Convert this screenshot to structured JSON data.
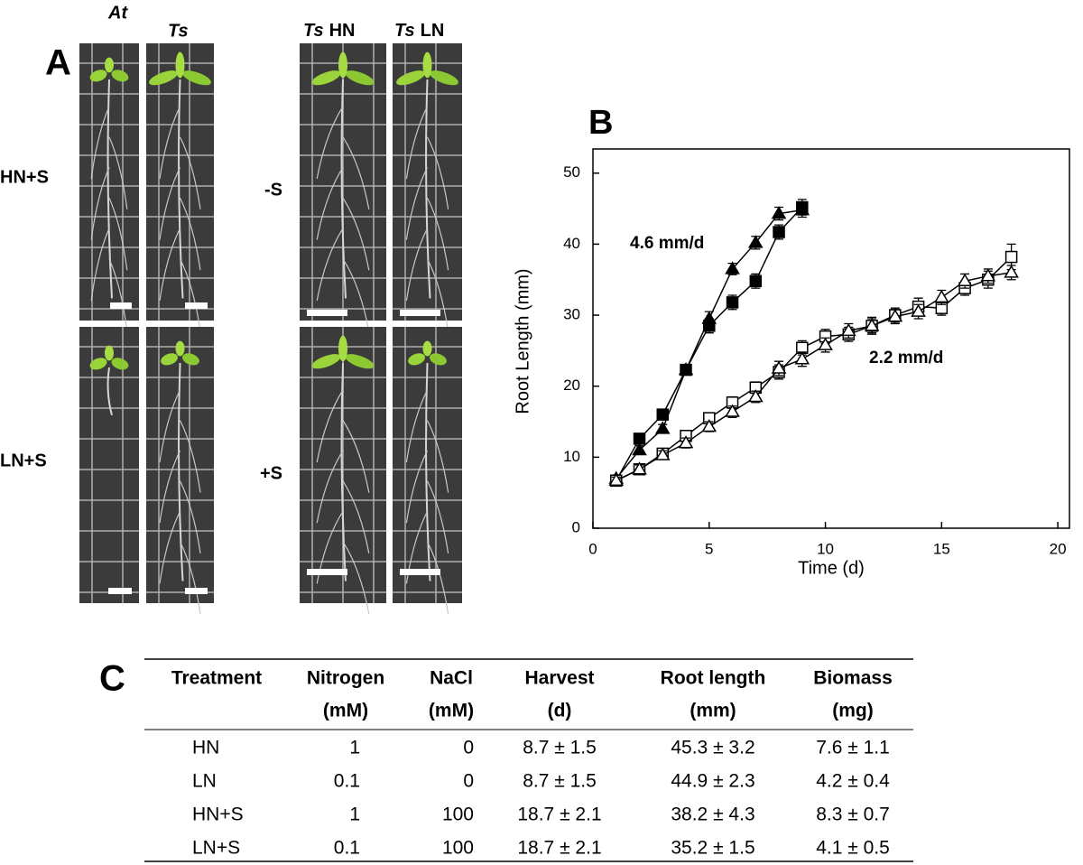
{
  "panel_a": {
    "label": "A",
    "column_headers": [
      {
        "species": "At"
      },
      {
        "species": "Ts"
      },
      {
        "species": "Ts",
        "condition": "HN"
      },
      {
        "species": "Ts",
        "condition": "LN"
      }
    ],
    "row_labels_left": [
      "HN+S",
      "LN+S"
    ],
    "row_labels_right": [
      "-S",
      "+S"
    ]
  },
  "chart_data": {
    "type": "line",
    "panel_label": "B",
    "x_label": "Time (d)",
    "y_label": "Root Length (mm)",
    "xlim": [
      0,
      20.5
    ],
    "ylim": [
      0,
      53.4
    ],
    "xticks": [
      0,
      5,
      10,
      15,
      20
    ],
    "yticks": [
      0,
      10,
      20,
      30,
      40,
      50
    ],
    "annotations": [
      "4.6 mm/d",
      "2.2 mm/d"
    ],
    "series": [
      {
        "color": "#000000",
        "marker": "square",
        "filled": true,
        "x": [
          1,
          2,
          3,
          4,
          5,
          6,
          7,
          8,
          9
        ],
        "values": [
          6.7,
          12.6,
          16,
          22.3,
          28.5,
          31.8,
          34.8,
          41.7,
          45.2
        ],
        "errors": [
          0.5,
          0.6,
          0.6,
          0.6,
          1,
          1,
          1,
          1,
          1.1
        ]
      },
      {
        "color": "#000000",
        "marker": "triangle",
        "filled": true,
        "x": [
          1,
          2,
          3,
          4,
          5,
          6,
          7,
          8,
          9
        ],
        "values": [
          7,
          11,
          14,
          22.3,
          29.5,
          36.5,
          40.2,
          44.3,
          44.8
        ],
        "errors": [
          0.5,
          0.6,
          0.6,
          0.6,
          1,
          0.8,
          0.9,
          0.9,
          1
        ]
      },
      {
        "color": "#000000",
        "marker": "square",
        "filled": false,
        "x": [
          1,
          2,
          3,
          4,
          5,
          6,
          7,
          8,
          9,
          10,
          11,
          12,
          13,
          14,
          15,
          16,
          17,
          18
        ],
        "values": [
          6.7,
          8.3,
          10.5,
          13,
          15.5,
          17.7,
          19.8,
          22,
          25.4,
          27,
          27.3,
          28.5,
          30,
          31.2,
          31,
          33.8,
          35,
          38.2
        ],
        "errors": [
          0.5,
          0.6,
          0.6,
          0.7,
          0.7,
          0.8,
          0.8,
          1,
          1,
          1,
          1,
          1.2,
          1,
          1.2,
          1,
          1,
          1.2,
          1.8
        ]
      },
      {
        "color": "#000000",
        "marker": "triangle",
        "filled": false,
        "x": [
          1,
          2,
          3,
          4,
          5,
          6,
          7,
          8,
          9,
          10,
          11,
          12,
          13,
          14,
          15,
          16,
          17,
          18
        ],
        "values": [
          6.7,
          8.3,
          10.3,
          12,
          14.3,
          16.4,
          18.5,
          22.5,
          23.8,
          25.8,
          27.8,
          28.5,
          29.8,
          30.5,
          32.5,
          34.8,
          35.5,
          36
        ],
        "errors": [
          0.5,
          0.6,
          0.6,
          0.7,
          0.7,
          0.8,
          0.8,
          1,
          1,
          1,
          1,
          1,
          1,
          1,
          1,
          1,
          1,
          1
        ]
      }
    ]
  },
  "panel_c": {
    "label": "C",
    "header": [
      {
        "lines": [
          "Treatment"
        ]
      },
      {
        "lines": [
          "Nitrogen",
          "(mM)"
        ]
      },
      {
        "lines": [
          "NaCl",
          "(mM)"
        ]
      },
      {
        "lines": [
          "Harvest",
          "(d)"
        ]
      },
      {
        "lines": [
          "Root length",
          "(mm)"
        ]
      },
      {
        "lines": [
          "Biomass",
          "(mg)"
        ]
      }
    ],
    "rows": [
      [
        "HN",
        1,
        0,
        "8.7 ± 1.5",
        "45.3 ± 3.2",
        "7.6 ± 1.1"
      ],
      [
        "LN",
        0.1,
        0,
        "8.7 ± 1.5",
        "44.9 ± 2.3",
        "4.2 ± 0.4"
      ],
      [
        "HN+S",
        1,
        100,
        "18.7 ± 2.1",
        "38.2 ± 4.3",
        "8.3 ± 0.7"
      ],
      [
        "LN+S",
        0.1,
        100,
        "18.7 ± 2.1",
        "35.2 ± 1.5",
        "4.1 ± 0.5"
      ]
    ]
  }
}
